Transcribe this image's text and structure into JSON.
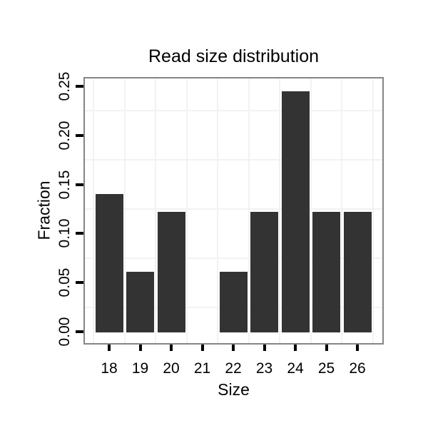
{
  "chart_data": {
    "type": "bar",
    "title": "Read size distribution",
    "xlabel": "Size",
    "ylabel": "Fraction",
    "categories": [
      "18",
      "19",
      "20",
      "21",
      "22",
      "23",
      "24",
      "25",
      "26"
    ],
    "values": [
      0.141,
      0.062,
      0.123,
      0,
      0.062,
      0.123,
      0.246,
      0.123,
      0.123
    ],
    "ylim": [
      0,
      0.25
    ],
    "yticks": [
      0,
      0.05,
      0.1,
      0.15,
      0.2,
      0.25
    ],
    "ytick_labels": [
      "0.00",
      "0.05",
      "0.10",
      "0.15",
      "0.20",
      "0.25"
    ],
    "legend": "none",
    "grid": "faint gridlines at midpoints between breaks, horizontal and vertical",
    "colors": {
      "bar": "#333333",
      "panel_border": "#858585",
      "gridline": "#f2f2f2",
      "text": "#000000",
      "background": "#ffffff"
    }
  }
}
